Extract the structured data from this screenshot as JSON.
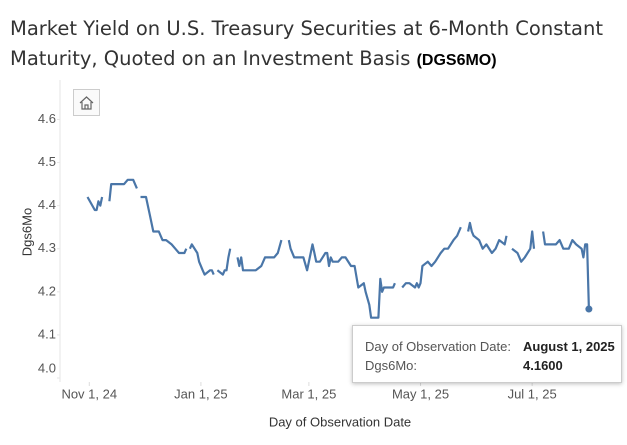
{
  "chart_data": {
    "type": "line",
    "title": "Market Yield on U.S. Treasury Securities at 6-Month Constant Maturity, Quoted on an Investment Basis",
    "title_code": "(DGS6MO)",
    "x_label": "Day of Observation Date",
    "y_label": "Dgs6Mo",
    "xlim": [
      "2024-10-16",
      "2025-08-18"
    ],
    "xticks": [
      {
        "value": "2024-11-01",
        "label": "Nov 1, 24"
      },
      {
        "value": "2025-01-01",
        "label": "Jan 1, 25"
      },
      {
        "value": "2025-03-01",
        "label": "Mar 1, 25"
      },
      {
        "value": "2025-05-01",
        "label": "May 1, 25"
      },
      {
        "value": "2025-07-01",
        "label": "Jul 1, 25"
      }
    ],
    "ylim": [
      4.0,
      4.68
    ],
    "yticks": [
      {
        "value": 4,
        "label": "4.0"
      },
      4.1,
      4.2,
      4.3,
      4.4,
      4.5,
      4.6
    ],
    "grid": false,
    "series": [
      {
        "name": "Dgs6Mo",
        "color": "#4a76a8",
        "x": [
          "2024-10-31",
          "2024-11-04",
          "2024-11-05",
          "2024-11-06",
          "2024-11-07",
          "2024-11-08",
          "2024-11-11",
          "2024-11-12",
          "2024-11-13",
          "2024-11-15",
          "2024-11-18",
          "2024-11-20",
          "2024-11-22",
          "2024-11-25",
          "2024-11-27",
          "2024-11-28",
          "2024-11-29",
          "2024-12-02",
          "2024-12-04",
          "2024-12-06",
          "2024-12-09",
          "2024-12-11",
          "2024-12-13",
          "2024-12-16",
          "2024-12-18",
          "2024-12-20",
          "2024-12-23",
          "2024-12-24",
          "2024-12-25",
          "2024-12-26",
          "2024-12-27",
          "2024-12-30",
          "2024-12-31",
          "2025-01-02",
          "2025-01-03",
          "2025-01-06",
          "2025-01-07",
          "2025-01-08",
          "2025-01-09",
          "2025-01-10",
          "2025-01-13",
          "2025-01-14",
          "2025-01-15",
          "2025-01-16",
          "2025-01-17",
          "2025-01-20",
          "2025-01-21",
          "2025-01-22",
          "2025-01-23",
          "2025-01-24",
          "2025-01-27",
          "2025-01-29",
          "2025-01-31",
          "2025-02-03",
          "2025-02-05",
          "2025-02-07",
          "2025-02-10",
          "2025-02-12",
          "2025-02-14",
          "2025-02-17",
          "2025-02-18",
          "2025-02-19",
          "2025-02-21",
          "2025-02-24",
          "2025-02-26",
          "2025-02-28",
          "2025-03-03",
          "2025-03-04",
          "2025-03-05",
          "2025-03-07",
          "2025-03-10",
          "2025-03-11",
          "2025-03-12",
          "2025-03-13",
          "2025-03-14",
          "2025-03-17",
          "2025-03-19",
          "2025-03-21",
          "2025-03-24",
          "2025-03-26",
          "2025-03-28",
          "2025-03-31",
          "2025-04-01",
          "2025-04-03",
          "2025-04-04",
          "2025-04-07",
          "2025-04-08",
          "2025-04-09",
          "2025-04-10",
          "2025-04-11",
          "2025-04-14",
          "2025-04-16",
          "2025-04-17",
          "2025-04-18",
          "2025-04-21",
          "2025-04-23",
          "2025-04-25",
          "2025-04-28",
          "2025-04-29",
          "2025-04-30",
          "2025-05-01",
          "2025-05-02",
          "2025-05-05",
          "2025-05-07",
          "2025-05-09",
          "2025-05-12",
          "2025-05-14",
          "2025-05-16",
          "2025-05-19",
          "2025-05-21",
          "2025-05-23",
          "2025-05-26",
          "2025-05-27",
          "2025-05-28",
          "2025-05-29",
          "2025-05-30",
          "2025-06-02",
          "2025-06-04",
          "2025-06-06",
          "2025-06-09",
          "2025-06-11",
          "2025-06-13",
          "2025-06-16",
          "2025-06-17",
          "2025-06-19",
          "2025-06-20",
          "2025-06-23",
          "2025-06-25",
          "2025-06-27",
          "2025-06-30",
          "2025-07-01",
          "2025-07-02",
          "2025-07-04",
          "2025-07-07",
          "2025-07-08",
          "2025-07-10",
          "2025-07-14",
          "2025-07-16",
          "2025-07-18",
          "2025-07-21",
          "2025-07-23",
          "2025-07-25",
          "2025-07-28",
          "2025-07-29",
          "2025-07-30",
          "2025-07-31",
          "2025-08-01"
        ],
        "values": [
          4.42,
          4.39,
          4.39,
          4.41,
          4.4,
          4.42,
          null,
          4.41,
          4.45,
          4.45,
          4.45,
          4.45,
          4.46,
          4.46,
          4.44,
          null,
          4.42,
          4.42,
          4.38,
          4.34,
          4.34,
          4.32,
          4.32,
          4.31,
          4.3,
          4.29,
          4.29,
          4.3,
          null,
          4.3,
          4.31,
          4.29,
          4.27,
          4.25,
          4.24,
          4.25,
          4.25,
          4.24,
          null,
          4.25,
          4.24,
          4.25,
          4.25,
          4.28,
          4.3,
          null,
          4.28,
          4.26,
          4.28,
          4.25,
          4.25,
          4.25,
          4.25,
          4.26,
          4.28,
          4.28,
          4.28,
          4.29,
          4.32,
          null,
          4.32,
          4.3,
          4.28,
          4.28,
          4.28,
          4.25,
          4.31,
          4.29,
          4.27,
          4.27,
          4.29,
          4.29,
          4.26,
          4.28,
          4.27,
          4.27,
          4.28,
          4.28,
          4.26,
          4.26,
          4.21,
          4.22,
          4.2,
          4.17,
          4.14,
          4.14,
          4.14,
          4.23,
          4.2,
          4.21,
          4.21,
          4.21,
          4.22,
          null,
          4.21,
          4.22,
          4.22,
          4.21,
          4.22,
          4.21,
          4.22,
          4.26,
          4.27,
          4.26,
          4.27,
          4.29,
          4.3,
          4.3,
          4.32,
          4.33,
          4.35,
          null,
          4.34,
          4.36,
          4.34,
          4.33,
          4.32,
          4.3,
          4.31,
          4.29,
          4.3,
          4.32,
          4.31,
          4.33,
          null,
          4.3,
          4.29,
          4.27,
          4.28,
          4.3,
          4.34,
          4.3,
          null,
          4.34,
          4.31,
          4.31,
          4.31,
          4.32,
          4.3,
          4.3,
          4.32,
          4.31,
          4.3,
          4.28,
          4.31,
          4.31,
          4.16
        ]
      }
    ],
    "tooltip": {
      "rows": [
        {
          "label": "Day of Observation Date:",
          "value": "August 1, 2025"
        },
        {
          "label": "Dgs6Mo:",
          "value": "4.1600"
        }
      ]
    }
  }
}
